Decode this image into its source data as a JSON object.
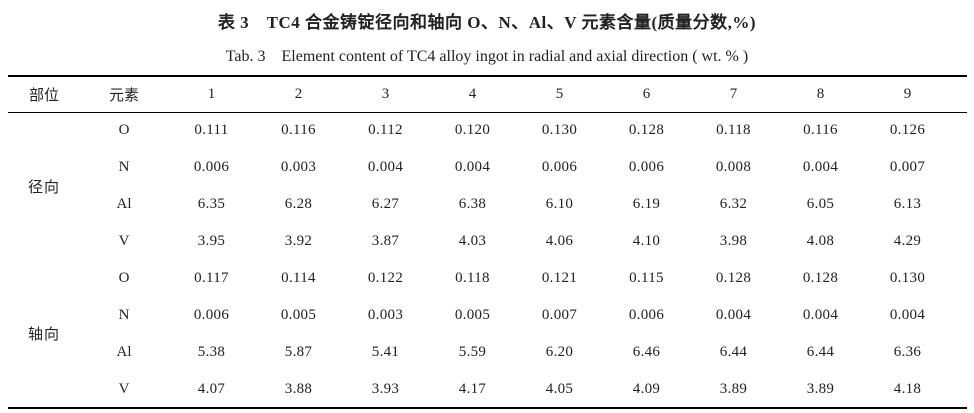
{
  "titles": {
    "cn": "表 3　TC4 合金铸锭径向和轴向 O、N、Al、V 元素含量(质量分数,%)",
    "en": "Tab. 3　Element content of TC4 alloy ingot in radial and axial direction ( wt. % )"
  },
  "table": {
    "columns": [
      "部位",
      "元素",
      "1",
      "2",
      "3",
      "4",
      "5",
      "6",
      "7",
      "8",
      "9"
    ],
    "groups": [
      {
        "label": "径向",
        "label_en": "radial",
        "rows": [
          {
            "element": "O",
            "values": [
              "0.111",
              "0.116",
              "0.112",
              "0.120",
              "0.130",
              "0.128",
              "0.118",
              "0.116",
              "0.126"
            ]
          },
          {
            "element": "N",
            "values": [
              "0.006",
              "0.003",
              "0.004",
              "0.004",
              "0.006",
              "0.006",
              "0.008",
              "0.004",
              "0.007"
            ]
          },
          {
            "element": "Al",
            "values": [
              "6.35",
              "6.28",
              "6.27",
              "6.38",
              "6.10",
              "6.19",
              "6.32",
              "6.05",
              "6.13"
            ]
          },
          {
            "element": "V",
            "values": [
              "3.95",
              "3.92",
              "3.87",
              "4.03",
              "4.06",
              "4.10",
              "3.98",
              "4.08",
              "4.29"
            ]
          }
        ]
      },
      {
        "label": "轴向",
        "label_en": "axial",
        "rows": [
          {
            "element": "O",
            "values": [
              "0.117",
              "0.114",
              "0.122",
              "0.118",
              "0.121",
              "0.115",
              "0.128",
              "0.128",
              "0.130"
            ]
          },
          {
            "element": "N",
            "values": [
              "0.006",
              "0.005",
              "0.003",
              "0.005",
              "0.007",
              "0.006",
              "0.004",
              "0.004",
              "0.004"
            ]
          },
          {
            "element": "Al",
            "values": [
              "5.38",
              "5.87",
              "5.41",
              "5.59",
              "6.20",
              "6.46",
              "6.44",
              "6.44",
              "6.36"
            ]
          },
          {
            "element": "V",
            "values": [
              "4.07",
              "3.88",
              "3.93",
              "4.17",
              "4.05",
              "4.09",
              "3.89",
              "3.89",
              "4.18"
            ]
          }
        ]
      }
    ]
  },
  "colors": {
    "background": "#ffffff",
    "text": "#222222",
    "rule": "#000000"
  }
}
